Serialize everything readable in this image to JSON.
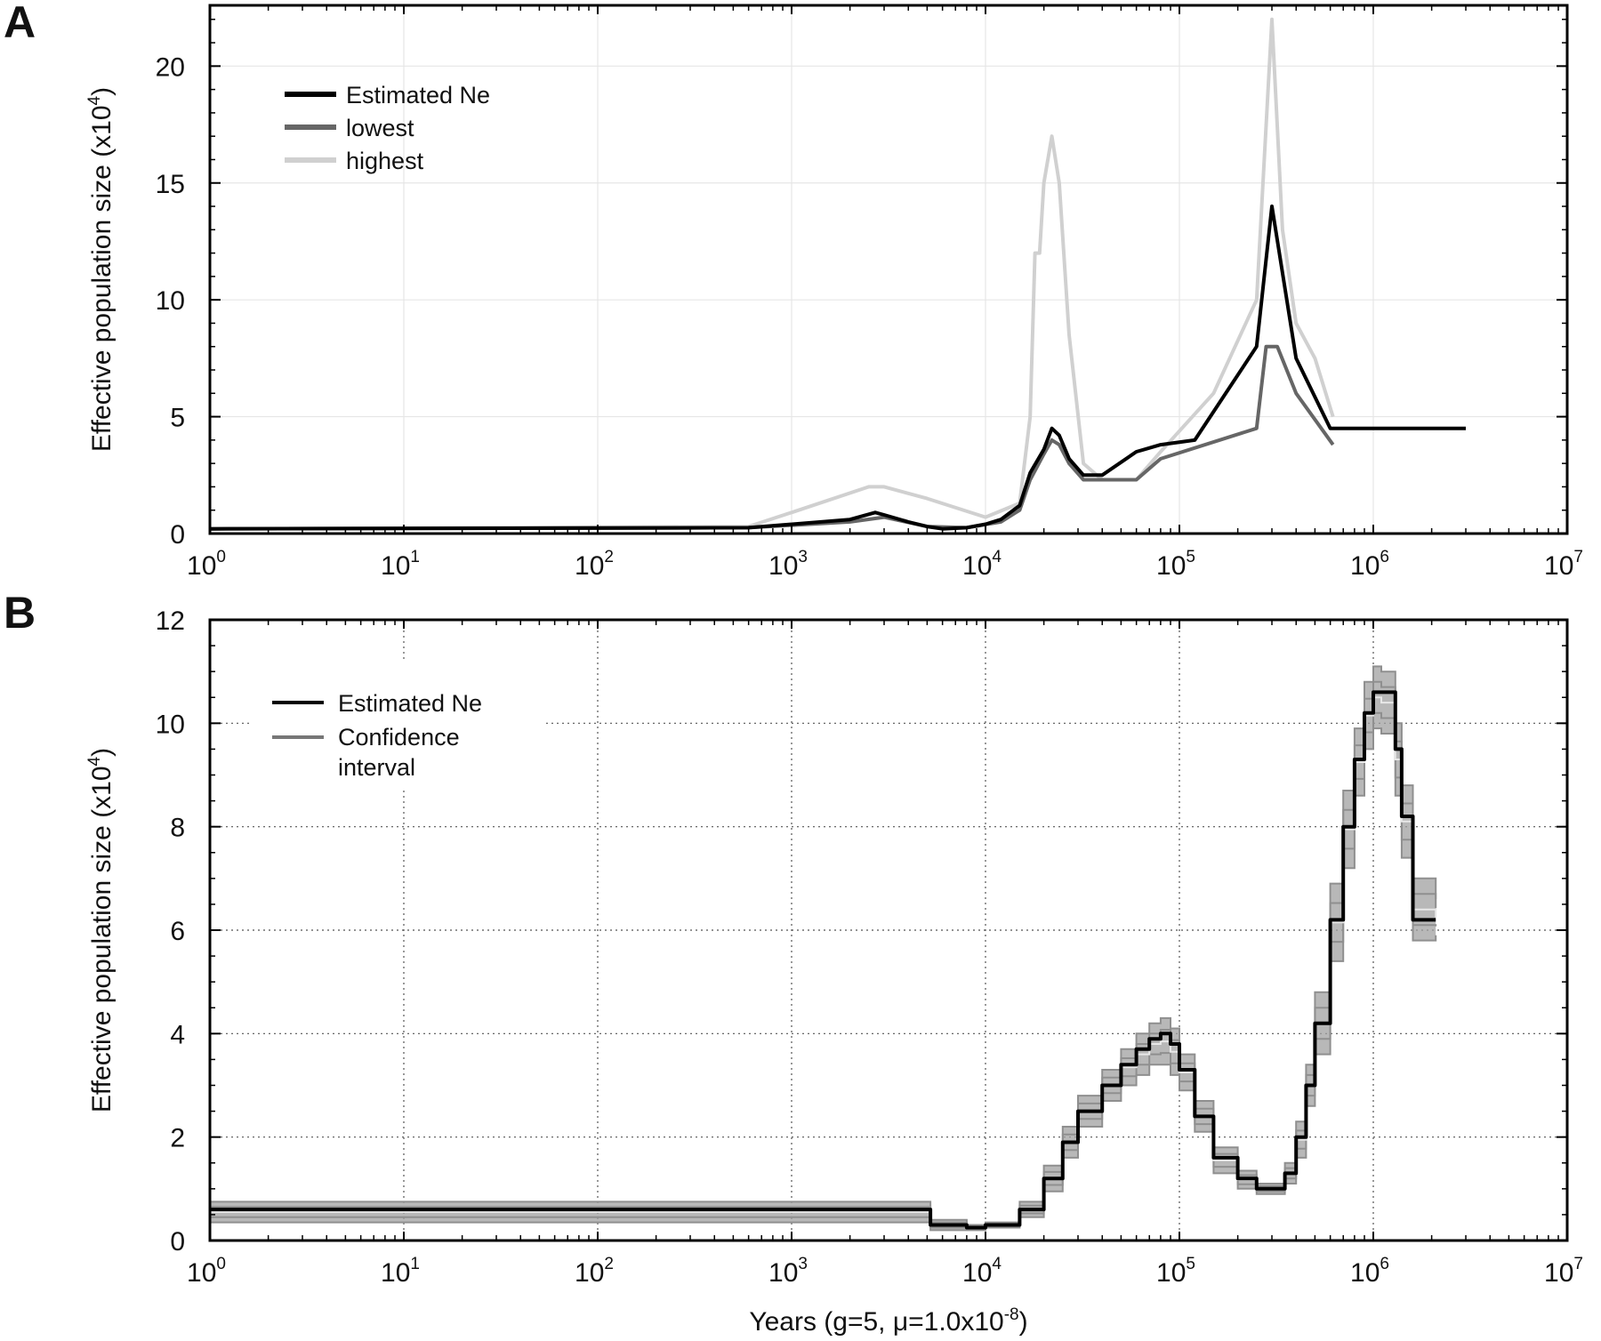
{
  "chart_data": [
    {
      "panel_label": "A",
      "type": "line",
      "x_scale": "log",
      "xlim": [
        1,
        10000000
      ],
      "ylim": [
        0,
        22.6
      ],
      "x_ticks": [
        {
          "base": "10",
          "exp": "0"
        },
        {
          "base": "10",
          "exp": "1"
        },
        {
          "base": "10",
          "exp": "2"
        },
        {
          "base": "10",
          "exp": "3"
        },
        {
          "base": "10",
          "exp": "4"
        },
        {
          "base": "10",
          "exp": "5"
        },
        {
          "base": "10",
          "exp": "6"
        },
        {
          "base": "10",
          "exp": "7"
        }
      ],
      "y_ticks": [
        "0",
        "5",
        "10",
        "15",
        "20"
      ],
      "ylabel": {
        "main": "Effective population size (x10",
        "exp": "4",
        "close": ")"
      },
      "grid": "light",
      "legend_position": "top-left",
      "series": [
        {
          "name": "Estimated Ne",
          "color": "#000000",
          "x": [
            1,
            600,
            2000,
            2700,
            3000,
            4000,
            5000,
            6000,
            8000,
            10000,
            12000,
            15000,
            17000,
            20000,
            22000,
            24000,
            27000,
            32000,
            40000,
            60000,
            80000,
            120000,
            250000,
            300000,
            400000,
            600000,
            3000000
          ],
          "y": [
            0.2,
            0.25,
            0.6,
            0.9,
            0.8,
            0.5,
            0.3,
            0.2,
            0.25,
            0.4,
            0.6,
            1.2,
            2.6,
            3.6,
            4.5,
            4.2,
            3.2,
            2.5,
            2.5,
            3.5,
            3.8,
            4.0,
            8.0,
            14.0,
            7.5,
            4.5,
            4.5
          ]
        },
        {
          "name": "lowest",
          "color": "#666666",
          "x": [
            1,
            600,
            2000,
            3000,
            5000,
            8000,
            12000,
            15000,
            17000,
            20000,
            22000,
            24000,
            27000,
            32000,
            40000,
            60000,
            80000,
            250000,
            280000,
            320000,
            400000,
            620000
          ],
          "y": [
            0.2,
            0.25,
            0.5,
            0.7,
            0.3,
            0.25,
            0.5,
            1.0,
            2.3,
            3.4,
            4.0,
            3.8,
            3.0,
            2.3,
            2.3,
            2.3,
            3.2,
            4.5,
            8.0,
            8.0,
            6.0,
            3.8
          ]
        },
        {
          "name": "highest",
          "color": "#d0d0d0",
          "x": [
            1,
            600,
            1000,
            2500,
            3000,
            5000,
            10000,
            15000,
            17000,
            18000,
            19000,
            20000,
            22000,
            24000,
            27000,
            32000,
            40000,
            60000,
            80000,
            150000,
            250000,
            300000,
            340000,
            400000,
            500000,
            620000
          ],
          "y": [
            0.2,
            0.3,
            0.9,
            2.0,
            2.0,
            1.5,
            0.7,
            1.3,
            5.0,
            12.0,
            12.0,
            15.0,
            17.0,
            15.0,
            8.5,
            3.0,
            2.3,
            2.3,
            3.5,
            6.0,
            10.0,
            22.0,
            13.0,
            9.0,
            7.5,
            5.0
          ]
        }
      ]
    },
    {
      "panel_label": "B",
      "type": "line",
      "x_scale": "log",
      "xlim": [
        1,
        10000000
      ],
      "ylim": [
        0,
        12
      ],
      "x_ticks": [
        {
          "base": "10",
          "exp": "0"
        },
        {
          "base": "10",
          "exp": "1"
        },
        {
          "base": "10",
          "exp": "2"
        },
        {
          "base": "10",
          "exp": "3"
        },
        {
          "base": "10",
          "exp": "4"
        },
        {
          "base": "10",
          "exp": "5"
        },
        {
          "base": "10",
          "exp": "6"
        },
        {
          "base": "10",
          "exp": "7"
        }
      ],
      "y_ticks": [
        "0",
        "2",
        "4",
        "6",
        "8",
        "10",
        "12"
      ],
      "ylabel": {
        "main": "Effective population size (x10",
        "exp": "4",
        "close": ")"
      },
      "xlabel": {
        "main": "Years (g=5, μ=1.0x10",
        "exp": "-8",
        "close": ")"
      },
      "grid": "dotted",
      "legend_position": "top-left",
      "series": [
        {
          "name": "Estimated Ne",
          "color": "#000000",
          "step": true,
          "x": [
            1,
            5000,
            5200,
            8000,
            10000,
            15000,
            20000,
            25000,
            30000,
            40000,
            50000,
            60000,
            70000,
            80000,
            90000,
            100000,
            120000,
            150000,
            200000,
            250000,
            300000,
            350000,
            400000,
            450000,
            500000,
            600000,
            700000,
            800000,
            900000,
            1000000,
            1100000,
            1300000,
            1400000,
            1600000,
            2100000
          ],
          "y": [
            0.6,
            0.6,
            0.3,
            0.25,
            0.3,
            0.6,
            1.2,
            1.9,
            2.5,
            3.0,
            3.4,
            3.7,
            3.9,
            4.0,
            3.8,
            3.3,
            2.4,
            1.6,
            1.2,
            1.0,
            1.0,
            1.3,
            2.0,
            3.0,
            4.2,
            6.2,
            8.0,
            9.3,
            10.2,
            10.6,
            10.6,
            9.5,
            8.2,
            6.2,
            6.2
          ]
        },
        {
          "name": "Confidence interval",
          "color": "#a0a0a0",
          "step": true,
          "band_upper": {
            "x": [
              1,
              5000,
              5200,
              8000,
              10000,
              15000,
              20000,
              25000,
              30000,
              40000,
              50000,
              60000,
              70000,
              80000,
              90000,
              100000,
              120000,
              150000,
              200000,
              250000,
              300000,
              350000,
              400000,
              450000,
              500000,
              600000,
              700000,
              800000,
              900000,
              1000000,
              1100000,
              1300000,
              1400000,
              1600000,
              2100000
            ],
            "y": [
              0.75,
              0.75,
              0.4,
              0.3,
              0.35,
              0.75,
              1.45,
              2.2,
              2.8,
              3.3,
              3.7,
              4.0,
              4.2,
              4.3,
              4.1,
              3.6,
              2.7,
              1.8,
              1.35,
              1.1,
              1.1,
              1.5,
              2.3,
              3.4,
              4.8,
              6.9,
              8.7,
              9.9,
              10.8,
              11.1,
              11.0,
              10.0,
              8.8,
              7.0,
              6.6
            ]
          },
          "band_lower": {
            "x": [
              1,
              5000,
              5200,
              8000,
              10000,
              15000,
              20000,
              25000,
              30000,
              40000,
              50000,
              60000,
              70000,
              80000,
              90000,
              100000,
              120000,
              150000,
              200000,
              250000,
              300000,
              350000,
              400000,
              450000,
              500000,
              600000,
              700000,
              800000,
              900000,
              1000000,
              1100000,
              1300000,
              1400000,
              1600000,
              2100000
            ],
            "y": [
              0.35,
              0.35,
              0.2,
              0.2,
              0.25,
              0.45,
              0.95,
              1.6,
              2.2,
              2.7,
              3.0,
              3.2,
              3.4,
              3.4,
              3.2,
              2.9,
              2.1,
              1.3,
              1.0,
              0.9,
              0.9,
              1.1,
              1.6,
              2.6,
              3.6,
              5.4,
              7.2,
              8.6,
              9.5,
              9.9,
              9.8,
              8.6,
              7.4,
              5.8,
              5.9
            ]
          }
        }
      ]
    }
  ]
}
